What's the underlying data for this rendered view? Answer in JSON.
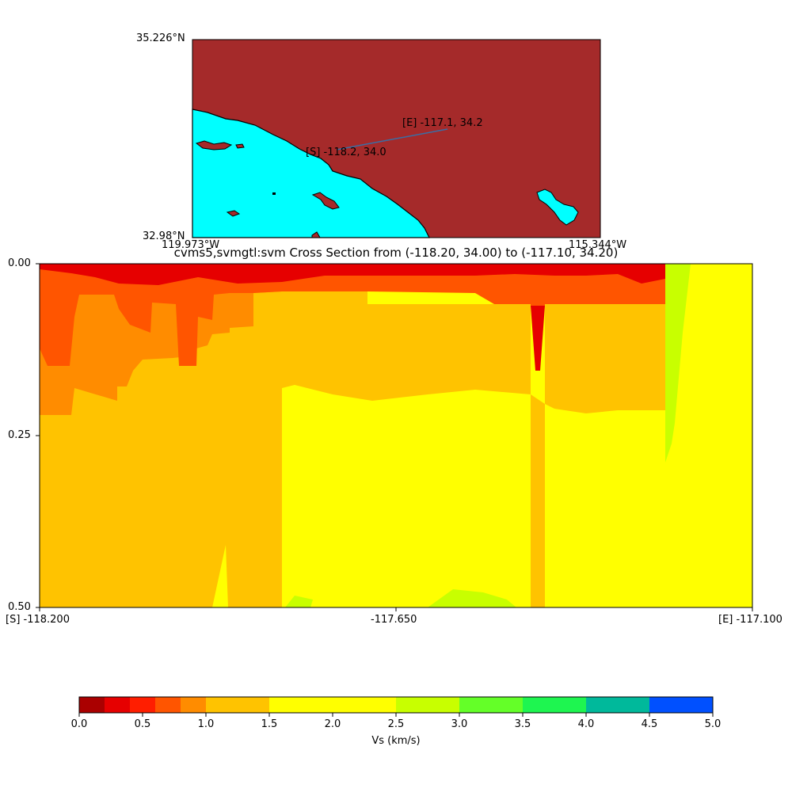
{
  "map": {
    "lat_top": "35.226°N",
    "lat_bottom": "32.98°N",
    "lon_left": "119.973°W",
    "lon_right": "115.344°W",
    "start_label": "[S] -118.2, 34.0",
    "end_label": "[E] -117.1, 34.2",
    "colors": {
      "land": "#a52a2a",
      "water": "#00ffff",
      "line": "#3a6ea5"
    }
  },
  "chart_data": {
    "type": "heatmap",
    "title": "cvms5,svmgtl:svm Cross Section from (-118.20, 34.00) to (-117.10, 34.20)",
    "x_ticks": [
      "[S] -118.200",
      "-117.650",
      "[E] -117.100"
    ],
    "y_ticks": [
      "0.00",
      "0.25",
      "0.50"
    ],
    "xlim": [
      -118.2,
      -117.1
    ],
    "ylim": [
      0.5,
      0.0
    ],
    "colorbar": {
      "label": "Vs (km/s)",
      "ticks": [
        "0.0",
        "0.5",
        "1.0",
        "1.5",
        "2.0",
        "2.5",
        "3.0",
        "3.5",
        "4.0",
        "4.5",
        "5.0"
      ],
      "bins": [
        {
          "from": 0.0,
          "to": 0.2,
          "color": "#aa0000"
        },
        {
          "from": 0.2,
          "to": 0.4,
          "color": "#e60000"
        },
        {
          "from": 0.4,
          "to": 0.6,
          "color": "#ff1e00"
        },
        {
          "from": 0.6,
          "to": 0.8,
          "color": "#ff5500"
        },
        {
          "from": 0.8,
          "to": 1.0,
          "color": "#ff8c00"
        },
        {
          "from": 1.0,
          "to": 1.5,
          "color": "#ffc300"
        },
        {
          "from": 1.5,
          "to": 2.5,
          "color": "#ffff00"
        },
        {
          "from": 2.5,
          "to": 3.0,
          "color": "#c8ff00"
        },
        {
          "from": 3.0,
          "to": 3.5,
          "color": "#64ff28"
        },
        {
          "from": 3.5,
          "to": 4.0,
          "color": "#1ef550"
        },
        {
          "from": 4.0,
          "to": 4.5,
          "color": "#00b99b"
        },
        {
          "from": 4.5,
          "to": 5.0,
          "color": "#0050ff"
        }
      ]
    }
  }
}
